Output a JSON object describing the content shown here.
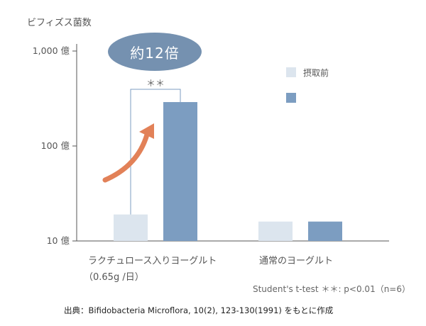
{
  "chart_data": {
    "type": "bar",
    "y_axis_title": "ビフィズス菌数",
    "yscale": "log",
    "ylim": [
      10,
      1000
    ],
    "yticks": [
      {
        "value": 10,
        "label": "10 億"
      },
      {
        "value": 100,
        "label": "100 億"
      },
      {
        "value": 1000,
        "label": "1,000 億"
      }
    ],
    "categories": [
      {
        "line1": "ラクチュロース入りヨーグルト",
        "line2": "（0.65g /日）"
      },
      {
        "line1": "通常のヨーグルト",
        "line2": ""
      }
    ],
    "series": [
      {
        "name": "摂取前",
        "color": "#dce5ee",
        "values": [
          19,
          16
        ]
      },
      {
        "name": "",
        "color": "#7c9dc1",
        "values": [
          290,
          16
        ]
      }
    ],
    "annotations": {
      "badge": "約12倍",
      "significance": "＊＊",
      "arrow_color": "#e28158"
    },
    "stats_note": "Student's t-test ＊＊: p<0.01（n=6）"
  },
  "source": "出典：Bifidobacteria Microflora, 10(2), 123-130(1991) をもとに作成"
}
